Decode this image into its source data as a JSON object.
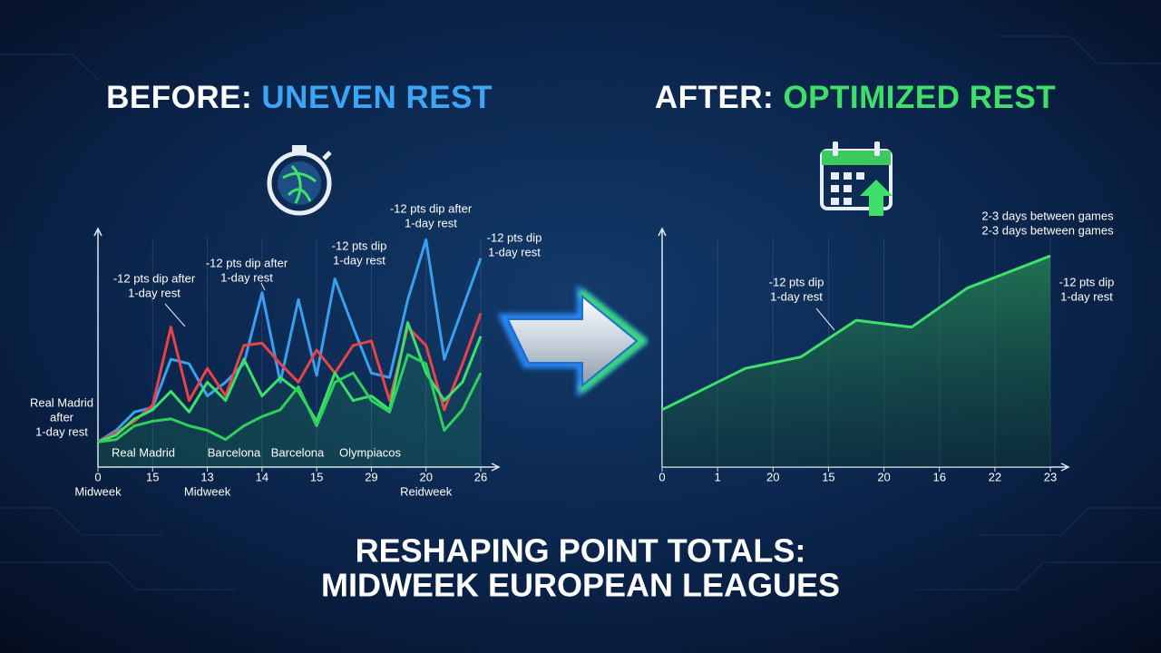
{
  "headline": [
    "RESHAPING POINT TOTALS:",
    "MIDWEEK EUROPEAN LEAGUES"
  ],
  "chart_data": [
    {
      "type": "line",
      "title": [
        "BEFORE:",
        "UNEVEN REST"
      ],
      "x": [
        0,
        1,
        2,
        3,
        4,
        5,
        6,
        7,
        8,
        9,
        10,
        11,
        12,
        13,
        14,
        15,
        16,
        17,
        18,
        19,
        20,
        21
      ],
      "xlim": [
        0,
        21
      ],
      "ylim": [
        0,
        100
      ],
      "xticks": [
        {
          "value": 0,
          "label": "0"
        },
        {
          "value": 3,
          "label": "15"
        },
        {
          "value": 6,
          "label": "13"
        },
        {
          "value": 9,
          "label": "14"
        },
        {
          "value": 12,
          "label": "15"
        },
        {
          "value": 15,
          "label": "29"
        },
        {
          "value": 18,
          "label": "20"
        },
        {
          "value": 21,
          "label": "26"
        }
      ],
      "xsublabels": [
        "Midweek",
        null,
        "Midweek",
        null,
        null,
        null,
        "Reidweek",
        null
      ],
      "grid": true,
      "series": [
        {
          "color": "#3aa0ee",
          "values": [
            11,
            16,
            24,
            26,
            47,
            45,
            31,
            37,
            45,
            76,
            37,
            73,
            40,
            82,
            61,
            41,
            39,
            73,
            99,
            47,
            69,
            91
          ]
        },
        {
          "color": "#e8434a",
          "values": [
            11,
            15,
            20,
            27,
            61,
            29,
            43,
            31,
            53,
            54,
            45,
            37,
            51,
            41,
            53,
            55,
            29,
            61,
            53,
            25,
            45,
            67
          ]
        },
        {
          "color": "#3ee06a",
          "values": [
            11,
            14,
            21,
            25,
            33,
            24,
            37,
            29,
            47,
            31,
            39,
            33,
            20,
            41,
            29,
            31,
            25,
            63,
            41,
            29,
            37,
            57
          ]
        },
        {
          "color": "#2fcf5c",
          "values": [
            11,
            12,
            18,
            20,
            21,
            18,
            16,
            12,
            18,
            22,
            25,
            35,
            18,
            37,
            41,
            29,
            24,
            49,
            45,
            16,
            25,
            41
          ]
        }
      ],
      "annotations": [
        [
          "Real Madrid",
          "after",
          "1-day rest"
        ],
        [
          "-12 pts dip after",
          "1-day rest"
        ],
        [
          "-12 pts dip after",
          "1-day rest"
        ],
        [
          "-12 pts dip",
          "1-day rest"
        ],
        [
          "-12 pts dip after",
          "1-day rest"
        ],
        [
          "-12 pts dip",
          "1-day rest"
        ]
      ],
      "point_labels": [
        "Real Madrid",
        "Barcelona",
        "Barcelona",
        "Olympiacos"
      ]
    },
    {
      "type": "area",
      "title": [
        "AFTER:",
        "OPTIMIZED REST"
      ],
      "x": [
        0,
        1.5,
        2.5,
        3.5,
        4.5,
        5.5,
        7
      ],
      "xlim": [
        0,
        7
      ],
      "ylim": [
        0,
        100
      ],
      "xticks": [
        {
          "value": 0,
          "label": "0"
        },
        {
          "value": 1,
          "label": "1"
        },
        {
          "value": 2,
          "label": "20"
        },
        {
          "value": 3,
          "label": "15"
        },
        {
          "value": 4,
          "label": "20"
        },
        {
          "value": 5,
          "label": "16"
        },
        {
          "value": 6,
          "label": "22"
        },
        {
          "value": 7,
          "label": "23"
        }
      ],
      "grid": true,
      "series": [
        {
          "color": "#3ee06a",
          "values": [
            25,
            43,
            48,
            64,
            61,
            78,
            92
          ]
        }
      ],
      "annotations": [
        [
          "2-3 days between games",
          "2-3 days between games"
        ],
        [
          "-12 pts dip",
          "1-day rest"
        ],
        [
          "-12 pts dip",
          "1-day rest"
        ]
      ]
    }
  ]
}
